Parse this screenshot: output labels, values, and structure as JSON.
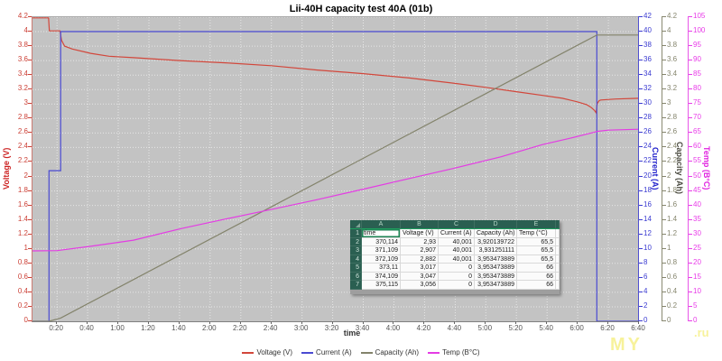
{
  "chart_data": {
    "type": "line",
    "title": "Lii-40H capacity test 40A (01b)",
    "grid": true,
    "legend_position": "bottom-center",
    "x_axis": {
      "label": "time",
      "range_seconds": [
        4,
        400
      ],
      "ticks": [
        "0:20",
        "0:40",
        "1:00",
        "1:20",
        "1:40",
        "2:00",
        "2:20",
        "2:40",
        "3:00",
        "3:20",
        "3:40",
        "4:00",
        "4:20",
        "4:40",
        "5:00",
        "5:20",
        "5:40",
        "6:00",
        "6:20",
        "6:40"
      ],
      "tick_seconds": [
        20,
        40,
        60,
        80,
        100,
        120,
        140,
        160,
        180,
        200,
        220,
        240,
        260,
        280,
        300,
        320,
        340,
        360,
        380,
        400
      ]
    },
    "y_axes": [
      {
        "id": "voltage",
        "label": "Voltage (V)",
        "side": "left",
        "color": "#cc2020",
        "tick_color": "#cc4036",
        "range": [
          0,
          4.2
        ],
        "ticks": [
          "0",
          "0.2",
          "0.4",
          "0.6",
          "0.8",
          "1",
          "1.2",
          "1.4",
          "1.6",
          "1.8",
          "2",
          "2.2",
          "2.4",
          "2.6",
          "2.8",
          "3",
          "3.2",
          "3.4",
          "3.6",
          "3.8",
          "4",
          "4.2"
        ]
      },
      {
        "id": "current",
        "label": "Current (A)",
        "side": "right",
        "color": "#2222cc",
        "tick_color": "#3b3bd1",
        "range": [
          0,
          42
        ],
        "ticks": [
          "0",
          "2",
          "4",
          "6",
          "8",
          "10",
          "12",
          "14",
          "16",
          "18",
          "20",
          "22",
          "24",
          "26",
          "28",
          "30",
          "32",
          "34",
          "36",
          "38",
          "40",
          "42"
        ]
      },
      {
        "id": "capacity",
        "label": "Capacity (Ah)",
        "side": "right",
        "color": "#4a4a40",
        "tick_color": "#85856d",
        "range": [
          0,
          4.2
        ],
        "ticks": [
          "0",
          "0.2",
          "0.4",
          "0.6",
          "0.8",
          "1",
          "1.2",
          "1.4",
          "1.6",
          "1.8",
          "2",
          "2.2",
          "2.4",
          "2.6",
          "2.8",
          "3",
          "3.2",
          "3.4",
          "3.6",
          "3.8",
          "4",
          "4.2"
        ]
      },
      {
        "id": "temp",
        "label": "Temp (B°C)",
        "side": "right",
        "color": "#e020e0",
        "tick_color": "#e83ce8",
        "range": [
          0,
          105
        ],
        "ticks": [
          "0",
          "5",
          "10",
          "15",
          "20",
          "25",
          "30",
          "35",
          "40",
          "45",
          "50",
          "55",
          "60",
          "65",
          "70",
          "75",
          "80",
          "85",
          "90",
          "95",
          "100",
          "105"
        ]
      }
    ],
    "series": [
      {
        "name": "Voltage (V)",
        "axis": "voltage",
        "color": "#d2473b",
        "points": [
          [
            4,
            4.19
          ],
          [
            14.5,
            4.19
          ],
          [
            15,
            4.01
          ],
          [
            22,
            4.01
          ],
          [
            23,
            3.88
          ],
          [
            25,
            3.8
          ],
          [
            30,
            3.76
          ],
          [
            42,
            3.7
          ],
          [
            54,
            3.66
          ],
          [
            70,
            3.64
          ],
          [
            100,
            3.6
          ],
          [
            130,
            3.57
          ],
          [
            160,
            3.53
          ],
          [
            190,
            3.47
          ],
          [
            220,
            3.42
          ],
          [
            250,
            3.36
          ],
          [
            278,
            3.29
          ],
          [
            300,
            3.23
          ],
          [
            320,
            3.17
          ],
          [
            337,
            3.12
          ],
          [
            350,
            3.08
          ],
          [
            360,
            3.03
          ],
          [
            366,
            2.99
          ],
          [
            369,
            2.95
          ],
          [
            371,
            2.91
          ],
          [
            372,
            2.88
          ],
          [
            372.7,
            3.0
          ],
          [
            373,
            3.017
          ],
          [
            374,
            3.047
          ],
          [
            375,
            3.056
          ],
          [
            385,
            3.07
          ],
          [
            400,
            3.08
          ]
        ]
      },
      {
        "name": "Current (A)",
        "axis": "current",
        "color": "#4a4ad2",
        "points": [
          [
            4,
            0
          ],
          [
            14.8,
            0
          ],
          [
            14.8,
            20.8
          ],
          [
            22.4,
            20.8
          ],
          [
            22.4,
            40
          ],
          [
            372.5,
            40
          ],
          [
            372.5,
            0
          ],
          [
            400,
            0
          ]
        ]
      },
      {
        "name": "Capacity (Ah)",
        "axis": "capacity",
        "color": "#83836b",
        "points": [
          [
            4,
            0
          ],
          [
            14.8,
            0
          ],
          [
            22.4,
            0.045
          ],
          [
            372.5,
            3.953
          ],
          [
            400,
            3.953
          ]
        ]
      },
      {
        "name": "Temp (B°C)",
        "axis": "temp",
        "color": "#e43ce4",
        "points": [
          [
            4,
            24.3
          ],
          [
            20,
            24.4
          ],
          [
            42,
            25.9
          ],
          [
            70,
            28
          ],
          [
            101,
            32
          ],
          [
            130,
            35.3
          ],
          [
            160,
            38.6
          ],
          [
            190,
            42
          ],
          [
            219,
            45.5
          ],
          [
            250,
            49.3
          ],
          [
            278,
            52.7
          ],
          [
            310,
            56.8
          ],
          [
            337,
            61
          ],
          [
            355,
            63.2
          ],
          [
            371,
            65.3
          ],
          [
            373,
            65.6
          ],
          [
            380,
            66
          ],
          [
            400,
            66.3
          ]
        ]
      }
    ],
    "legend": [
      "Voltage (V)",
      "Current (A)",
      "Capacity (Ah)",
      "Temp (B°C)"
    ]
  },
  "table": {
    "col_letters": [
      "A",
      "B",
      "C",
      "D",
      "E"
    ],
    "row_numbers": [
      "1",
      "2",
      "3",
      "4",
      "5",
      "6",
      "7"
    ],
    "rows": [
      [
        "time",
        "Voltage (V)",
        "Current (A)",
        "Capacity (Ah)",
        "Temp (°C)"
      ],
      [
        "370,114",
        "2,93",
        "40,001",
        "3,920139722",
        "65,5"
      ],
      [
        "371,109",
        "2,907",
        "40,001",
        "3,931251111",
        "65,5"
      ],
      [
        "372,109",
        "2,882",
        "40,001",
        "3,953473889",
        "65,5"
      ],
      [
        "373,11",
        "3,017",
        "0",
        "3,953473889",
        "66"
      ],
      [
        "374,109",
        "3,047",
        "0",
        "3,953473889",
        "66"
      ],
      [
        "375,115",
        "3,056",
        "0",
        "3,953473889",
        "66"
      ]
    ]
  },
  "watermark": {
    "large": "MY",
    "small": ".ru"
  }
}
